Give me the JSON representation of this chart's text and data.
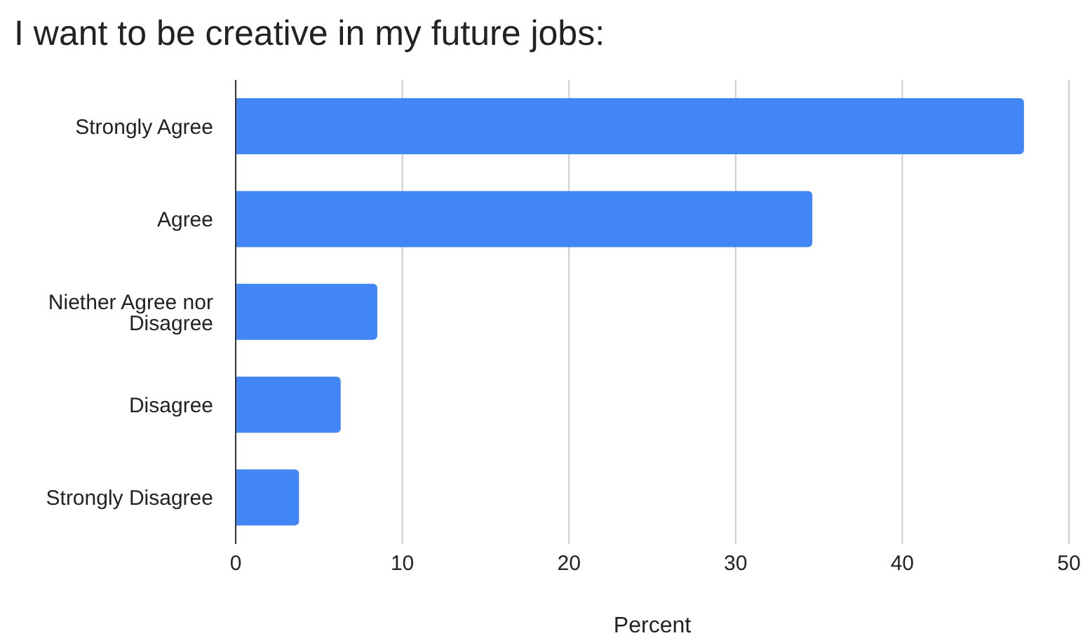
{
  "chart_data": {
    "type": "bar",
    "orientation": "horizontal",
    "title": "I want to be creative in my future jobs:",
    "xlabel": "Percent",
    "categories": [
      "Strongly Agree",
      "Agree",
      "Niether Agree nor Disagree",
      "Disagree",
      "Strongly Disagree"
    ],
    "values": [
      47.3,
      34.6,
      8.5,
      6.3,
      3.8
    ],
    "color": "#4285f4",
    "xlim": [
      0,
      50
    ],
    "xticks": [
      0,
      10,
      20,
      30,
      40,
      50
    ],
    "grid": "x"
  }
}
